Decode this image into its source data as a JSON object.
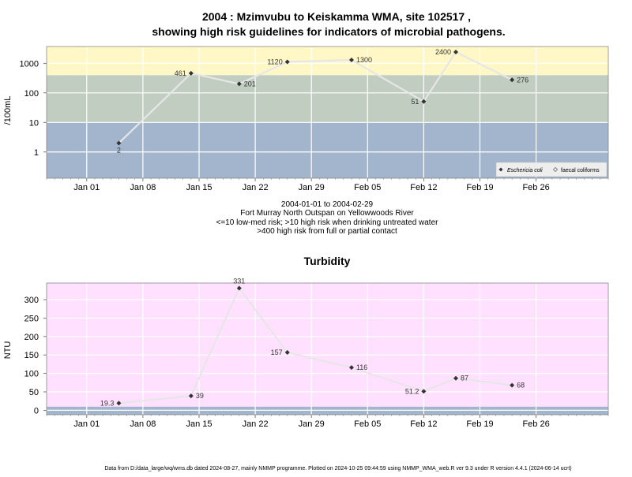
{
  "chart_data": [
    {
      "type": "line",
      "title": [
        "2004 : Mzimvubu to Keiskamma WMA, site 102517 ,",
        "showing high risk guidelines for indicators of microbial pathogens."
      ],
      "ylabel": "/100mL",
      "yscale": "log",
      "ylim": [
        0.13,
        3700
      ],
      "ytick_values": [
        1,
        10,
        100,
        1000
      ],
      "ytick_labels": [
        "1",
        "10",
        "100",
        "1000"
      ],
      "xlim": [
        "2003-12-27",
        "2004-03-06"
      ],
      "xtick_values": [
        "2004-01-01",
        "2004-01-08",
        "2004-01-15",
        "2004-01-22",
        "2004-01-29",
        "2004-02-05",
        "2004-02-12",
        "2004-02-19",
        "2004-02-26"
      ],
      "xtick_labels": [
        "Jan 01",
        "Jan 08",
        "Jan 15",
        "Jan 22",
        "Jan 29",
        "Feb 05",
        "Feb 12",
        "Feb 19",
        "Feb 26"
      ],
      "bands": [
        {
          "from": 0.13,
          "to": 10,
          "color": "#a2b5cd"
        },
        {
          "from": 10,
          "to": 400,
          "color": "#c1cdc1"
        },
        {
          "from": 400,
          "to": 3700,
          "color": "#fff8c6"
        }
      ],
      "series": [
        {
          "name": "Eschericia coli",
          "x": [
            "2004-01-05",
            "2004-01-14",
            "2004-01-20",
            "2004-01-26",
            "2004-02-03",
            "2004-02-12",
            "2004-02-16",
            "2004-02-23"
          ],
          "y": [
            2,
            461,
            201,
            1120,
            1300,
            51,
            2400,
            276
          ],
          "labels": [
            "2",
            "461",
            "201",
            "1120",
            "1300",
            "51",
            "2400",
            "276"
          ],
          "label_pos": [
            "below",
            "left",
            "right",
            "left",
            "right",
            "left",
            "left",
            "right"
          ],
          "marker": "diamond"
        }
      ],
      "legend": {
        "placement": "bottom-right",
        "entries": [
          "Eschericia coli",
          "faecal coliforms"
        ]
      },
      "subtitle_lines": [
        "2004-01-01 to 2004-02-29",
        "Fort Murray North Outspan on Yellowwoods River",
        "<=10 low-med risk; >10 high risk when drinking untreated water",
        ">400 high risk from full or partial contact"
      ],
      "colors": {
        "line": "#e6e6e6",
        "marker": "#333333",
        "grid": "#ffffff",
        "frame": "#888888"
      }
    },
    {
      "type": "line",
      "title": "Turbidity",
      "ylabel": "NTU",
      "ylim": [
        -12,
        345
      ],
      "ytick_values": [
        0,
        50,
        100,
        150,
        200,
        250,
        300
      ],
      "ytick_labels": [
        "0",
        "50",
        "100",
        "150",
        "200",
        "250",
        "300"
      ],
      "xlim": [
        "2003-12-27",
        "2004-03-06"
      ],
      "xtick_values": [
        "2004-01-01",
        "2004-01-08",
        "2004-01-15",
        "2004-01-22",
        "2004-01-29",
        "2004-02-05",
        "2004-02-12",
        "2004-02-19",
        "2004-02-26"
      ],
      "xtick_labels": [
        "Jan 01",
        "Jan 08",
        "Jan 15",
        "Jan 22",
        "Jan 29",
        "Feb 05",
        "Feb 12",
        "Feb 19",
        "Feb 26"
      ],
      "bands": [
        {
          "from": -12,
          "to": 10,
          "color": "#a2b5cd"
        },
        {
          "from": 10,
          "to": 345,
          "color": "#ffe1ff"
        }
      ],
      "series": [
        {
          "x": [
            "2004-01-05",
            "2004-01-14",
            "2004-01-20",
            "2004-01-26",
            "2004-02-03",
            "2004-02-12",
            "2004-02-16",
            "2004-02-23"
          ],
          "y": [
            19.3,
            39,
            331,
            157,
            116,
            51.2,
            87,
            68
          ],
          "labels": [
            "19.3",
            "39",
            "331",
            "157",
            "116",
            "51.2",
            "87",
            "68"
          ],
          "label_pos": [
            "left",
            "right",
            "above",
            "left",
            "right",
            "left",
            "right",
            "right"
          ],
          "marker": "diamond"
        }
      ],
      "colors": {
        "line": "#e6e6e6",
        "marker": "#333333",
        "grid": "#ffffff",
        "frame": "#888888"
      }
    }
  ],
  "footer": "Data from D:/data_large/wq/wms.db dated 2024-08-27, mainly NMMP programme. Plotted on 2024-10-25 09:44:59 using NMMP_WMA_web.R ver 9.3 under R version 4.4.1 (2024-06-14 ucrt)"
}
